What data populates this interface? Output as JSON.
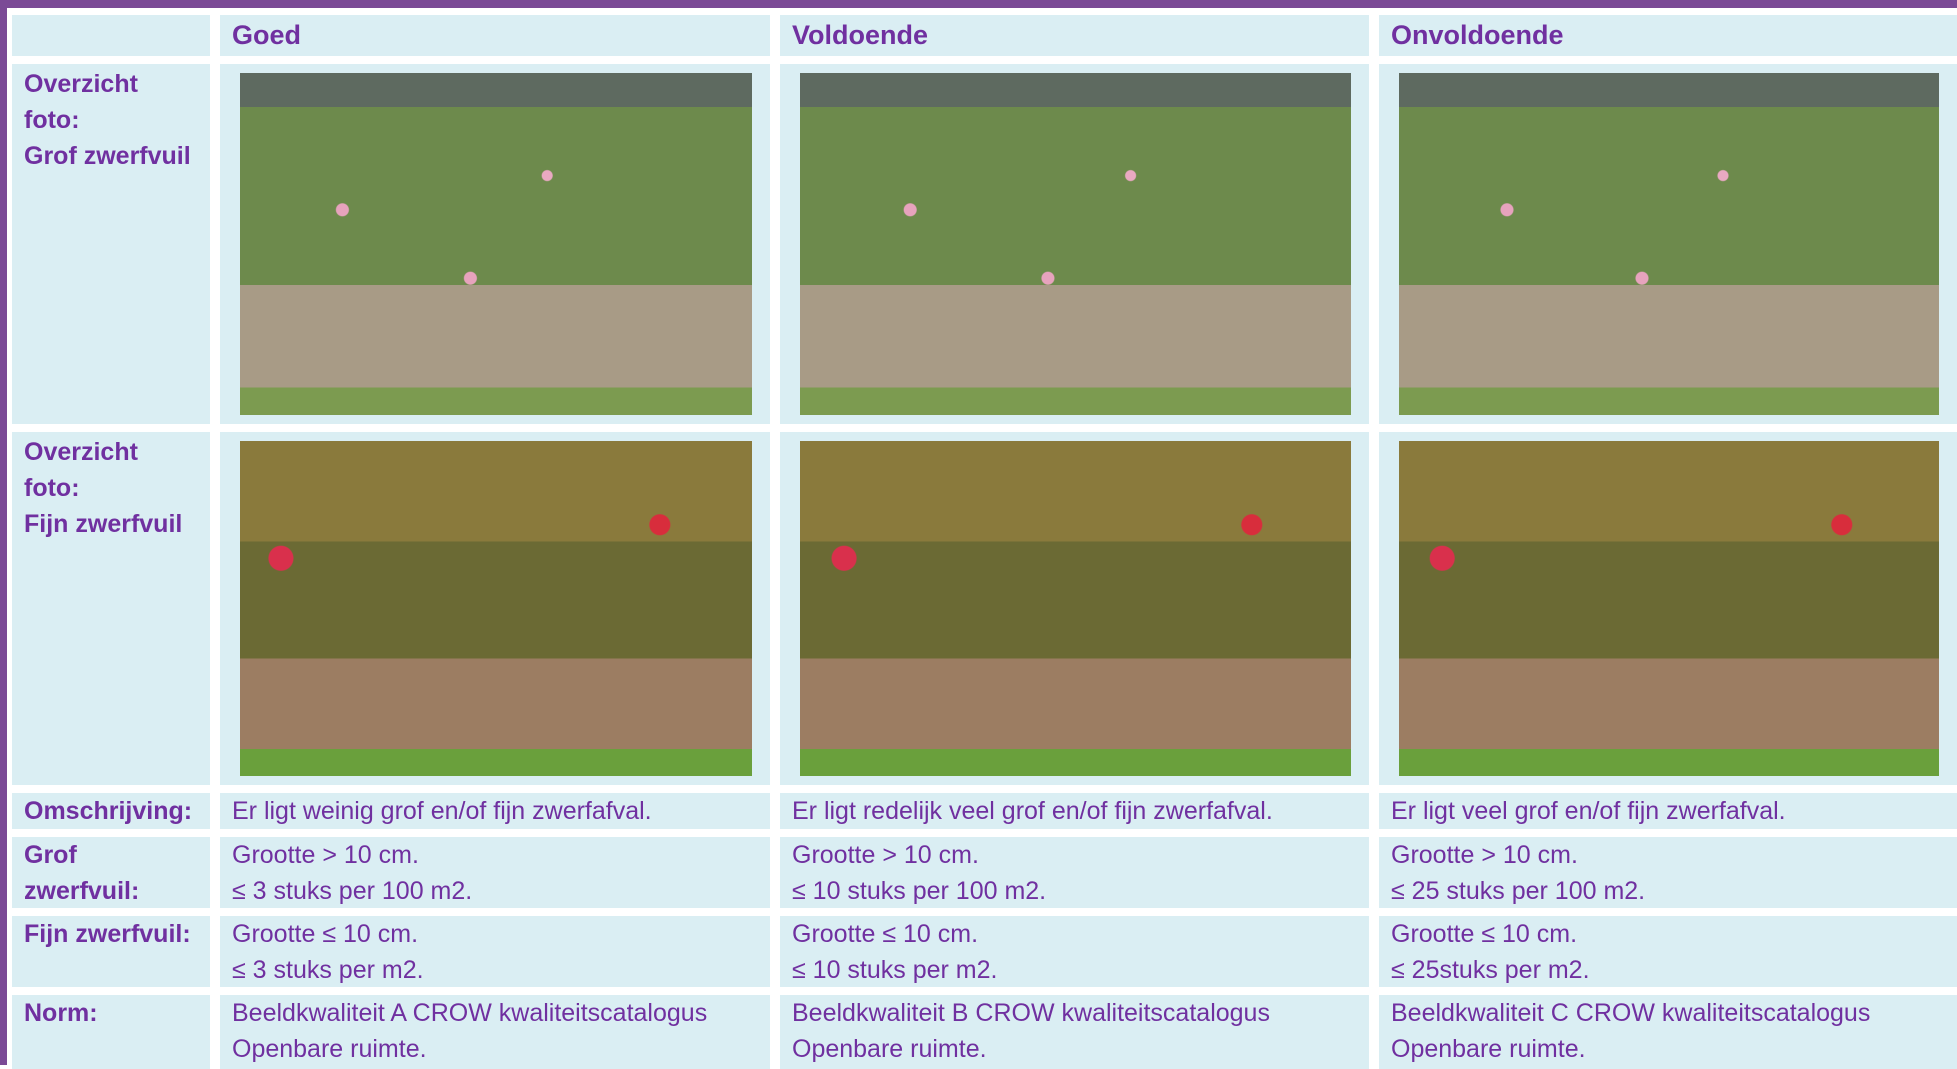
{
  "table": {
    "header": [
      "Goed",
      "Voldoende",
      "Onvoldoende"
    ],
    "photo_rows": [
      {
        "label": [
          "Overzicht",
          "foto:",
          "Grof zwerfvuil"
        ]
      },
      {
        "label": [
          "Overzicht",
          "foto:",
          "Fijn zwerfvuil"
        ]
      }
    ],
    "rows": [
      {
        "label": [
          "Omschrijving:"
        ],
        "cells": [
          [
            "Er ligt weinig grof en/of fijn zwerfafval."
          ],
          [
            "Er ligt redelijk veel grof en/of fijn zwerfafval."
          ],
          [
            "Er ligt veel grof en/of fijn zwerfafval."
          ]
        ]
      },
      {
        "label": [
          "Grof",
          "zwerfvuil:"
        ],
        "cells": [
          [
            "Grootte > 10 cm.",
            "≤ 3 stuks per 100 m2."
          ],
          [
            "Grootte > 10 cm.",
            "≤ 10 stuks per 100 m2."
          ],
          [
            "Grootte > 10 cm.",
            "≤ 25 stuks per 100 m2."
          ]
        ]
      },
      {
        "label": [
          "Fijn zwerfvuil:"
        ],
        "cells": [
          [
            "Grootte ≤ 10 cm.",
            "≤ 3 stuks per m2."
          ],
          [
            "Grootte ≤ 10 cm.",
            "≤ 10 stuks per m2."
          ],
          [
            "Grootte ≤ 10 cm.",
            "≤ 25stuks per m2."
          ]
        ]
      },
      {
        "label": [
          "Norm:"
        ],
        "cells": [
          [
            "Beeldkwaliteit A CROW kwaliteitscatalogus",
            "Openbare ruimte."
          ],
          [
            "Beeldkwaliteit B CROW kwaliteitscatalogus",
            "Openbare ruimte."
          ],
          [
            "Beeldkwaliteit C CROW kwaliteitscatalogus",
            "Openbare ruimte."
          ]
        ]
      }
    ]
  }
}
